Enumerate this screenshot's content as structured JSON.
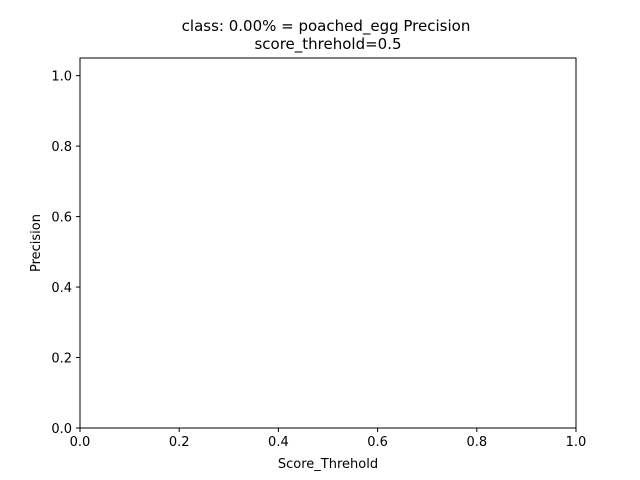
{
  "chart_data": {
    "type": "line",
    "title": "class: 0.00% = poached_egg Precision",
    "subtitle": "score_threhold=0.5",
    "xlabel": "Score_Threhold",
    "ylabel": "Precision",
    "xlim": [
      0.0,
      1.0
    ],
    "ylim": [
      0.0,
      1.05
    ],
    "xticks": [
      "0.0",
      "0.2",
      "0.4",
      "0.6",
      "0.8",
      "1.0"
    ],
    "yticks": [
      "0.0",
      "0.2",
      "0.4",
      "0.6",
      "0.8",
      "1.0"
    ],
    "grid": false,
    "series": []
  }
}
